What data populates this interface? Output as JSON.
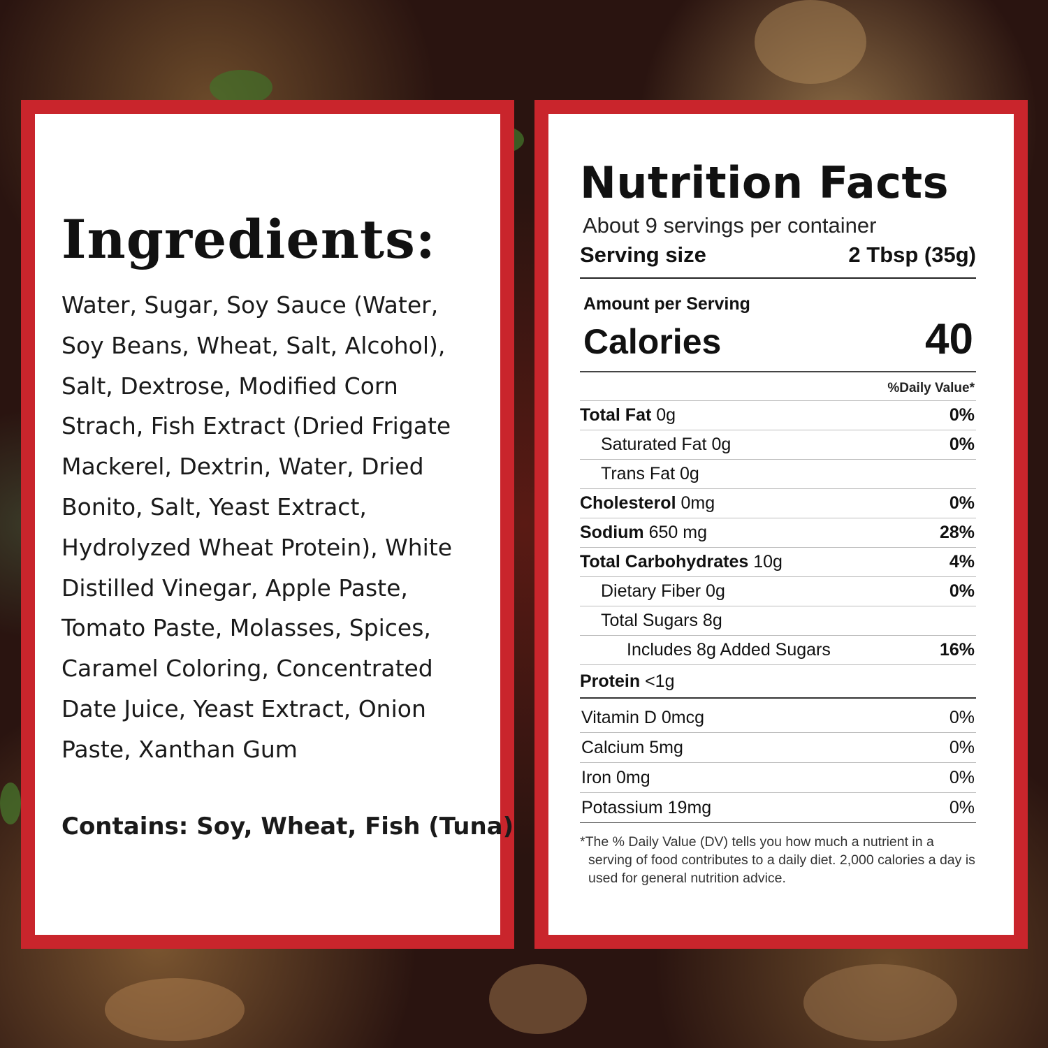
{
  "colors": {
    "card_border": "#c9252c",
    "card_fill": "#ffffff",
    "text": "#111111"
  },
  "ingredients": {
    "title": "Ingredients:",
    "text": "Water, Sugar, Soy Sauce (Water, Soy Beans, Wheat, Salt, Alcohol), Salt, Dextrose, Modified Corn Strach, Fish Extract (Dried Frigate Mackerel, Dextrin, Water, Dried Bonito, Salt, Yeast Extract, Hydrolyzed Wheat Protein), White Distilled Vinegar, Apple Paste, Tomato Paste, Molasses, Spices, Caramel Coloring, Concentrated Date Juice, Yeast Extract, Onion Paste, Xanthan Gum",
    "contains": "Contains: Soy, Wheat, Fish (Tuna)"
  },
  "nutrition": {
    "title": "Nutrition Facts",
    "servings": "About 9 servings per container",
    "serving_size_label": "Serving size",
    "serving_size_value": "2 Tbsp (35g)",
    "amount_per_serving": "Amount per Serving",
    "calories_label": "Calories",
    "calories_value": "40",
    "daily_value_header": "%Daily Value*",
    "rows": [
      {
        "label": "Total Fat",
        "amount": "0g",
        "pct": "0%"
      },
      {
        "label": "Saturated Fat",
        "amount": "0g",
        "pct": "0%"
      },
      {
        "label": "Trans Fat",
        "amount": "0g",
        "pct": ""
      },
      {
        "label": "Cholesterol",
        "amount": "0mg",
        "pct": "0%"
      },
      {
        "label": "Sodium",
        "amount": "650 mg",
        "pct": "28%"
      },
      {
        "label": "Total Carbohydrates",
        "amount": "10g",
        "pct": "4%"
      },
      {
        "label": "Dietary Fiber",
        "amount": "0g",
        "pct": "0%"
      },
      {
        "label": "Total Sugars",
        "amount": "8g",
        "pct": ""
      },
      {
        "label": "Includes 8g Added Sugars",
        "amount": "",
        "pct": "16%"
      },
      {
        "label": "Protein",
        "amount": "<1g",
        "pct": ""
      }
    ],
    "vitamins": [
      {
        "label": "Vitamin D 0mcg",
        "pct": "0%"
      },
      {
        "label": "Calcium 5mg",
        "pct": "0%"
      },
      {
        "label": "Iron 0mg",
        "pct": "0%"
      },
      {
        "label": "Potassium 19mg",
        "pct": "0%"
      }
    ],
    "footnote": "*The % Daily Value (DV) tells you how much a nutrient in a serving of food contributes to a daily diet. 2,000 calories a day is used for general nutrition advice."
  }
}
